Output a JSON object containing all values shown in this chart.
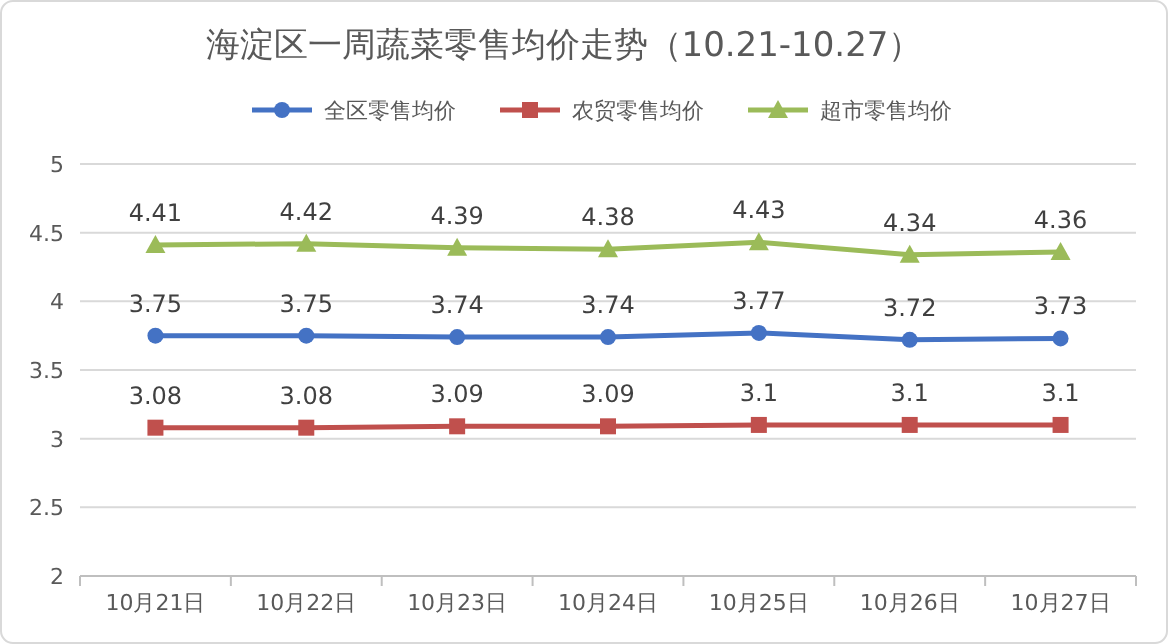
{
  "chart_data": {
    "type": "line",
    "title": "海淀区一周蔬菜零售均价走势（10.21-10.27）",
    "categories": [
      "10月21日",
      "10月22日",
      "10月23日",
      "10月24日",
      "10月25日",
      "10月26日",
      "10月27日"
    ],
    "series": [
      {
        "name": "全区零售均价",
        "color": "#4472c4",
        "marker": "circle",
        "values": [
          3.75,
          3.75,
          3.74,
          3.74,
          3.77,
          3.72,
          3.73
        ]
      },
      {
        "name": "农贸零售均价",
        "color": "#c0504d",
        "marker": "square",
        "values": [
          3.08,
          3.08,
          3.09,
          3.09,
          3.1,
          3.1,
          3.1
        ]
      },
      {
        "name": "超市零售均价",
        "color": "#9bbb59",
        "marker": "triangle",
        "values": [
          4.41,
          4.42,
          4.39,
          4.38,
          4.43,
          4.34,
          4.36
        ]
      }
    ],
    "ylim": [
      2,
      5
    ],
    "yticks": [
      2,
      2.5,
      3,
      3.5,
      4,
      4.5,
      5
    ],
    "grid": "y",
    "legend": "top",
    "data_labels": true
  }
}
